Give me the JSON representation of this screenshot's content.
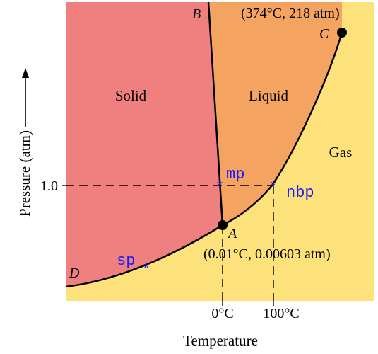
{
  "colors": {
    "solid": "#f08080",
    "liquid": "#f4a460",
    "gas": "#fde17a",
    "curve": "#000000",
    "marker": "#1a1aff",
    "text": "#000000"
  },
  "regions": {
    "solid": "Solid",
    "liquid": "Liquid",
    "gas": "Gas"
  },
  "points": {
    "B": "B",
    "C": "C",
    "A": "A",
    "D": "D",
    "critical_label": "(374°C, 218 atm)",
    "triple_label": "(0.01°C, 0.00603 atm)"
  },
  "markers": {
    "mp": "mp",
    "nbp": "nbp",
    "sp": "sp"
  },
  "axes": {
    "xlabel": "Temperature",
    "ylabel": "Pressure (atm)",
    "y_tick": "1.0",
    "x_tick_0": "0°C",
    "x_tick_100": "100°C"
  }
}
